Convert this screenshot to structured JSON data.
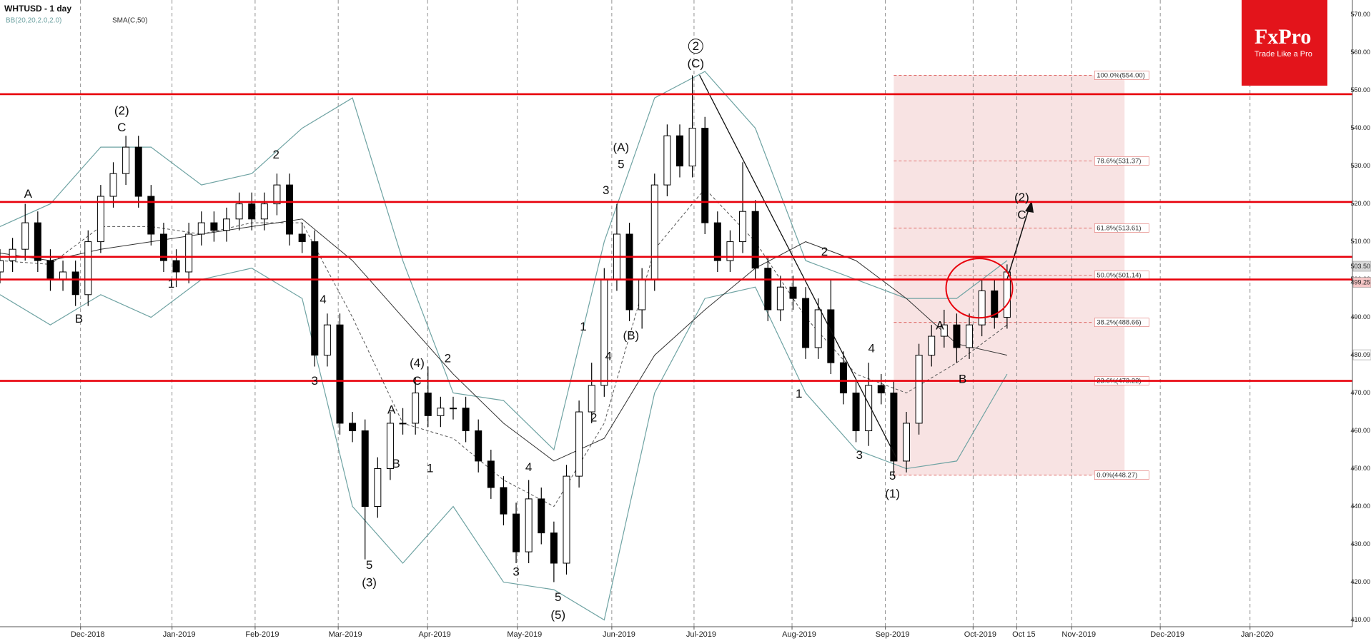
{
  "chart_data": {
    "type": "candlestick",
    "title": "WHTUSD - 1 day",
    "brand": {
      "name": "FxPro",
      "tagline": "Trade Like a Pro",
      "color": "#e3141b"
    },
    "xlim": [
      0,
      322.3
    ],
    "ylim": [
      408.2,
      573.9
    ],
    "xticks": [
      {
        "value": 19.2,
        "label": "Dec-2018"
      },
      {
        "value": 41,
        "label": "Jan-2019"
      },
      {
        "value": 60.8,
        "label": "Feb-2019"
      },
      {
        "value": 80.6,
        "label": "Mar-2019"
      },
      {
        "value": 101.9,
        "label": "Apr-2019"
      },
      {
        "value": 123.3,
        "label": "May-2019"
      },
      {
        "value": 145.8,
        "label": "Jun-2019"
      },
      {
        "value": 165.4,
        "label": "Jul-2019"
      },
      {
        "value": 188.75,
        "label": "Aug-2019"
      },
      {
        "value": 211,
        "label": "Sep-2019"
      },
      {
        "value": 231.9,
        "label": "Oct-2019"
      },
      {
        "value": 242.3,
        "label": "Oct 15"
      },
      {
        "value": 255.4,
        "label": "Nov-2019"
      },
      {
        "value": 276.5,
        "label": "Dec-2019"
      },
      {
        "value": 297.9,
        "label": "Jan-2020"
      }
    ],
    "yticks": [
      {
        "value": 410,
        "label": "410.00"
      },
      {
        "value": 420,
        "label": "420.00"
      },
      {
        "value": 430,
        "label": "430.00"
      },
      {
        "value": 440,
        "label": "440.00"
      },
      {
        "value": 450,
        "label": "450.00"
      },
      {
        "value": 460,
        "label": "460.00"
      },
      {
        "value": 470,
        "label": "470.00"
      },
      {
        "value": 480,
        "label": "480.00"
      },
      {
        "value": 490,
        "label": "490.00"
      },
      {
        "value": 500,
        "label": "500.00"
      },
      {
        "value": 510,
        "label": "510.00"
      },
      {
        "value": 520,
        "label": "520.00"
      },
      {
        "value": 530,
        "label": "530.00"
      },
      {
        "value": 540,
        "label": "540.00"
      },
      {
        "value": 550,
        "label": "550.00"
      },
      {
        "value": 560,
        "label": "560.00"
      },
      {
        "value": 570,
        "label": "570.00"
      }
    ],
    "x": [
      0,
      3,
      6,
      9,
      12,
      15,
      18,
      21,
      24,
      27,
      30,
      33,
      36,
      39,
      42,
      45,
      48,
      51,
      54,
      57,
      60,
      63,
      66,
      69,
      72,
      75,
      78,
      81,
      84,
      87,
      90,
      93,
      96,
      99,
      102,
      105,
      108,
      111,
      114,
      117,
      120,
      123,
      126,
      129,
      132,
      135,
      138,
      141,
      144,
      147,
      150,
      153,
      156,
      159,
      162,
      165,
      168,
      171,
      174,
      177,
      180,
      183,
      186,
      189,
      192,
      195,
      198,
      201,
      204,
      207,
      210,
      213,
      216,
      219,
      222,
      225,
      228,
      231,
      234,
      237,
      240
    ],
    "open": [
      502,
      505,
      508,
      515,
      505,
      500,
      502,
      496,
      510,
      522,
      528,
      535,
      522,
      512,
      505,
      502,
      512,
      515,
      513,
      516,
      520,
      516,
      520,
      525,
      512,
      510,
      480,
      488,
      462,
      460,
      440,
      450,
      462,
      462,
      470,
      464,
      466,
      466,
      460,
      452,
      445,
      438,
      428,
      442,
      433,
      425,
      448,
      465,
      472,
      500,
      512,
      492,
      500,
      525,
      538,
      530,
      540,
      515,
      505,
      510,
      518,
      503,
      492,
      498,
      495,
      482,
      492,
      478,
      470,
      460,
      472,
      470,
      452,
      462,
      480,
      485,
      488,
      482,
      488,
      497,
      490
    ],
    "high": [
      508,
      511,
      520,
      518,
      508,
      505,
      505,
      513,
      525,
      531,
      538,
      538,
      525,
      515,
      508,
      515,
      518,
      518,
      519,
      523,
      523,
      523,
      528,
      528,
      515,
      513,
      491,
      491,
      465,
      463,
      453,
      465,
      466,
      474,
      477,
      469,
      469,
      469,
      463,
      455,
      448,
      441,
      447,
      445,
      436,
      451,
      468,
      478,
      503,
      520,
      515,
      503,
      528,
      541,
      541,
      554,
      543,
      518,
      513,
      531,
      521,
      506,
      501,
      501,
      498,
      495,
      500,
      481,
      473,
      478,
      475,
      473,
      465,
      483,
      488,
      492,
      491,
      491,
      500,
      500,
      504
    ],
    "low": [
      499,
      502,
      505,
      502,
      497,
      497,
      493,
      493,
      507,
      519,
      525,
      519,
      509,
      502,
      498,
      499,
      509,
      510,
      510,
      513,
      513,
      513,
      517,
      509,
      507,
      477,
      477,
      459,
      457,
      426,
      437,
      447,
      459,
      459,
      461,
      461,
      463,
      457,
      449,
      442,
      435,
      425,
      425,
      430,
      420,
      422,
      445,
      462,
      469,
      497,
      489,
      487,
      497,
      522,
      527,
      527,
      512,
      502,
      502,
      507,
      500,
      489,
      489,
      492,
      479,
      479,
      475,
      467,
      457,
      456,
      467,
      448,
      449,
      459,
      477,
      482,
      478,
      479,
      485,
      487,
      487
    ],
    "close": [
      505,
      508,
      515,
      505,
      500,
      502,
      496,
      510,
      522,
      528,
      535,
      522,
      512,
      505,
      502,
      512,
      515,
      513,
      516,
      520,
      516,
      520,
      525,
      512,
      510,
      480,
      488,
      462,
      460,
      440,
      450,
      462,
      462,
      470,
      464,
      466,
      466,
      460,
      452,
      445,
      438,
      428,
      442,
      433,
      425,
      448,
      465,
      472,
      500,
      512,
      492,
      500,
      525,
      538,
      530,
      540,
      515,
      505,
      510,
      518,
      503,
      492,
      498,
      495,
      482,
      492,
      478,
      470,
      460,
      472,
      470,
      452,
      462,
      480,
      485,
      488,
      482,
      488,
      497,
      490,
      502
    ],
    "up_color": "#ffffff",
    "down_color": "#000000",
    "indicator_x": [
      0,
      12,
      24,
      36,
      48,
      60,
      72,
      84,
      96,
      108,
      120,
      132,
      144,
      156,
      168,
      180,
      192,
      204,
      216,
      228,
      240
    ],
    "indicators": [
      {
        "name": "BB(20,20,2.0,2.0)",
        "color": "#6fa3a3",
        "middle_color": "#555555",
        "upper": [
          514,
          520,
          535,
          535,
          525,
          528,
          540,
          548,
          505,
          470,
          468,
          455,
          510,
          548,
          555,
          540,
          505,
          500,
          495,
          495,
          505
        ],
        "middle": [
          505,
          504,
          514,
          514,
          512,
          515,
          515,
          490,
          462,
          458,
          447,
          440,
          462,
          508,
          524,
          510,
          490,
          475,
          470,
          478,
          488
        ],
        "lower": [
          496,
          488,
          496,
          490,
          500,
          503,
          495,
          440,
          425,
          440,
          420,
          418,
          410,
          470,
          495,
          498,
          470,
          455,
          450,
          452,
          475
        ]
      },
      {
        "name": "SMA(C,50)",
        "color": "#333333",
        "values": [
          507,
          505,
          508,
          510,
          512,
          514,
          516,
          505,
          490,
          475,
          462,
          452,
          458,
          480,
          492,
          503,
          510,
          505,
          495,
          483,
          480
        ]
      }
    ],
    "levels": [
      549,
      520.5,
      506,
      500,
      473.2
    ],
    "level_color": "#e8000b",
    "fib": {
      "x": [
        213,
        268
      ],
      "color": "#d9534f",
      "fill": "#f6dcdc",
      "levels": [
        {
          "value": 554.0,
          "label": "100.0%(554.00)"
        },
        {
          "value": 531.37,
          "label": "78.6%(531.37)"
        },
        {
          "value": 513.61,
          "label": "61.8%(513.61)"
        },
        {
          "value": 501.14,
          "label": "50.0%(501.14)"
        },
        {
          "value": 488.66,
          "label": "38.2%(488.66)"
        },
        {
          "value": 473.22,
          "label": "23.6%(473.22)"
        },
        {
          "value": 448.27,
          "label": "0.0%(448.27)"
        }
      ]
    },
    "price_flags": [
      {
        "value": 503.5,
        "label": "503.50",
        "fill": "#d9d9d9"
      },
      {
        "value": 499.25,
        "label": "499.25",
        "fill": "#f5c6c6"
      },
      {
        "value": 480.09,
        "label": "480.09",
        "fill": "#ffffff"
      }
    ],
    "annotations": [
      {
        "text": "A",
        "x": 6.7,
        "y": 522.7
      },
      {
        "text": "B",
        "x": 18.8,
        "y": 489.6
      },
      {
        "text": "(2)",
        "x": 29,
        "y": 544.6
      },
      {
        "text": "C",
        "x": 29,
        "y": 540.2
      },
      {
        "text": "1",
        "x": 40.8,
        "y": 498.9
      },
      {
        "text": "2",
        "x": 65.8,
        "y": 533
      },
      {
        "text": "4",
        "x": 77,
        "y": 494.7
      },
      {
        "text": "3",
        "x": 75,
        "y": 473.2
      },
      {
        "text": "5",
        "x": 88,
        "y": 424.5
      },
      {
        "text": "(3)",
        "x": 88,
        "y": 419.9
      },
      {
        "text": "A",
        "x": 93.3,
        "y": 465.6
      },
      {
        "text": "B",
        "x": 94.4,
        "y": 451.3
      },
      {
        "text": "(4)",
        "x": 99.4,
        "y": 477.9
      },
      {
        "text": "C",
        "x": 99.4,
        "y": 473.2
      },
      {
        "text": "2",
        "x": 106.7,
        "y": 479.2
      },
      {
        "text": "1",
        "x": 102.5,
        "y": 450.1
      },
      {
        "text": "4",
        "x": 126,
        "y": 450.4
      },
      {
        "text": "3",
        "x": 123,
        "y": 422.7
      },
      {
        "text": "5",
        "x": 133,
        "y": 416
      },
      {
        "text": "(5)",
        "x": 133,
        "y": 411.3
      },
      {
        "text": "1",
        "x": 139,
        "y": 487.6
      },
      {
        "text": "2",
        "x": 141.5,
        "y": 463.5
      },
      {
        "text": "3",
        "x": 144.4,
        "y": 523.6
      },
      {
        "text": "4",
        "x": 145,
        "y": 479.7
      },
      {
        "text": "(A)",
        "x": 148,
        "y": 534.9
      },
      {
        "text": "5",
        "x": 148,
        "y": 530.5
      },
      {
        "text": "(B)",
        "x": 150.4,
        "y": 485.2
      },
      {
        "text": "2",
        "x": 165.8,
        "y": 561.7,
        "circled": true
      },
      {
        "text": "(C)",
        "x": 165.8,
        "y": 557.1
      },
      {
        "text": "1",
        "x": 190.4,
        "y": 469.8
      },
      {
        "text": "2",
        "x": 196.5,
        "y": 507.4
      },
      {
        "text": "3",
        "x": 204.8,
        "y": 453.6
      },
      {
        "text": "4",
        "x": 207.7,
        "y": 481.8
      },
      {
        "text": "5",
        "x": 212.7,
        "y": 448.1
      },
      {
        "text": "(1)",
        "x": 212.7,
        "y": 443.4
      },
      {
        "text": "A",
        "x": 224,
        "y": 487.8
      },
      {
        "text": "B",
        "x": 229.4,
        "y": 473.7
      },
      {
        "text": "(2)",
        "x": 243.5,
        "y": 521.7
      },
      {
        "text": "C",
        "x": 243.5,
        "y": 517.1
      }
    ]
  }
}
